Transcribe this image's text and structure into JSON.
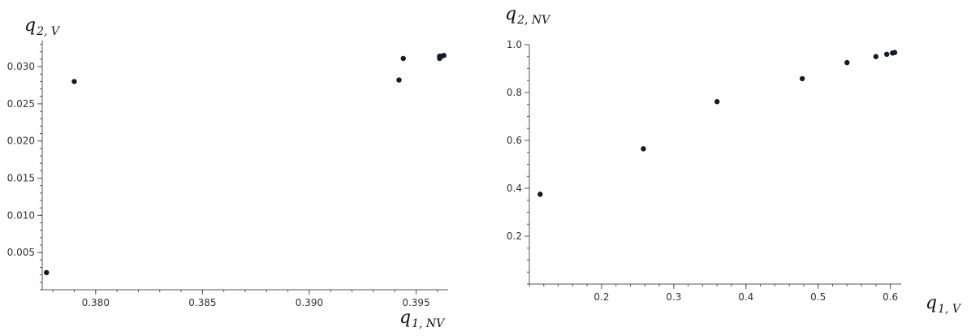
{
  "chart_data": [
    {
      "type": "scatter",
      "title": "",
      "xlabel": {
        "main": "q",
        "sub": "1, NV"
      },
      "ylabel": {
        "main": "q",
        "sub": "2, V"
      },
      "xlim": [
        0.3775,
        0.3965
      ],
      "ylim": [
        0.0,
        0.0335
      ],
      "xticks": [
        0.38,
        0.385,
        0.39,
        0.395
      ],
      "xtick_labels": [
        "0.380",
        "0.385",
        "0.390",
        "0.395"
      ],
      "yticks": [
        0.005,
        0.01,
        0.015,
        0.02,
        0.025,
        0.03
      ],
      "ytick_labels": [
        "0.005",
        "0.010",
        "0.015",
        "0.020",
        "0.025",
        "0.030"
      ],
      "x_minor_step": 0.001,
      "y_minor_step": 0.001,
      "points": [
        {
          "x": 0.3777,
          "y": 0.0023
        },
        {
          "x": 0.379,
          "y": 0.028
        },
        {
          "x": 0.3942,
          "y": 0.0282
        },
        {
          "x": 0.3944,
          "y": 0.0311
        },
        {
          "x": 0.3961,
          "y": 0.0311
        },
        {
          "x": 0.3961,
          "y": 0.0314
        },
        {
          "x": 0.3962,
          "y": 0.0314
        },
        {
          "x": 0.3963,
          "y": 0.0315
        }
      ],
      "marker_color": "#0d1b2a"
    },
    {
      "type": "scatter",
      "title": "",
      "xlabel": {
        "main": "q",
        "sub": "1, V"
      },
      "ylabel": {
        "main": "q",
        "sub": "2, NV"
      },
      "xlim": [
        0.1,
        0.615
      ],
      "ylim": [
        0.0,
        1.0
      ],
      "xticks": [
        0.2,
        0.3,
        0.4,
        0.5,
        0.6
      ],
      "xtick_labels": [
        "0.2",
        "0.3",
        "0.4",
        "0.5",
        "0.6"
      ],
      "yticks": [
        0.2,
        0.4,
        0.6,
        0.8,
        1.0
      ],
      "ytick_labels": [
        "0.2",
        "0.4",
        "0.6",
        "0.8",
        "1.0"
      ],
      "x_minor_step": 0.02,
      "y_minor_step": 0.05,
      "points": [
        {
          "x": 0.115,
          "y": 0.375
        },
        {
          "x": 0.258,
          "y": 0.565
        },
        {
          "x": 0.36,
          "y": 0.762
        },
        {
          "x": 0.478,
          "y": 0.858
        },
        {
          "x": 0.54,
          "y": 0.925
        },
        {
          "x": 0.58,
          "y": 0.95
        },
        {
          "x": 0.595,
          "y": 0.96
        },
        {
          "x": 0.603,
          "y": 0.965
        },
        {
          "x": 0.606,
          "y": 0.967
        }
      ],
      "marker_color": "#0d1b2a"
    }
  ]
}
